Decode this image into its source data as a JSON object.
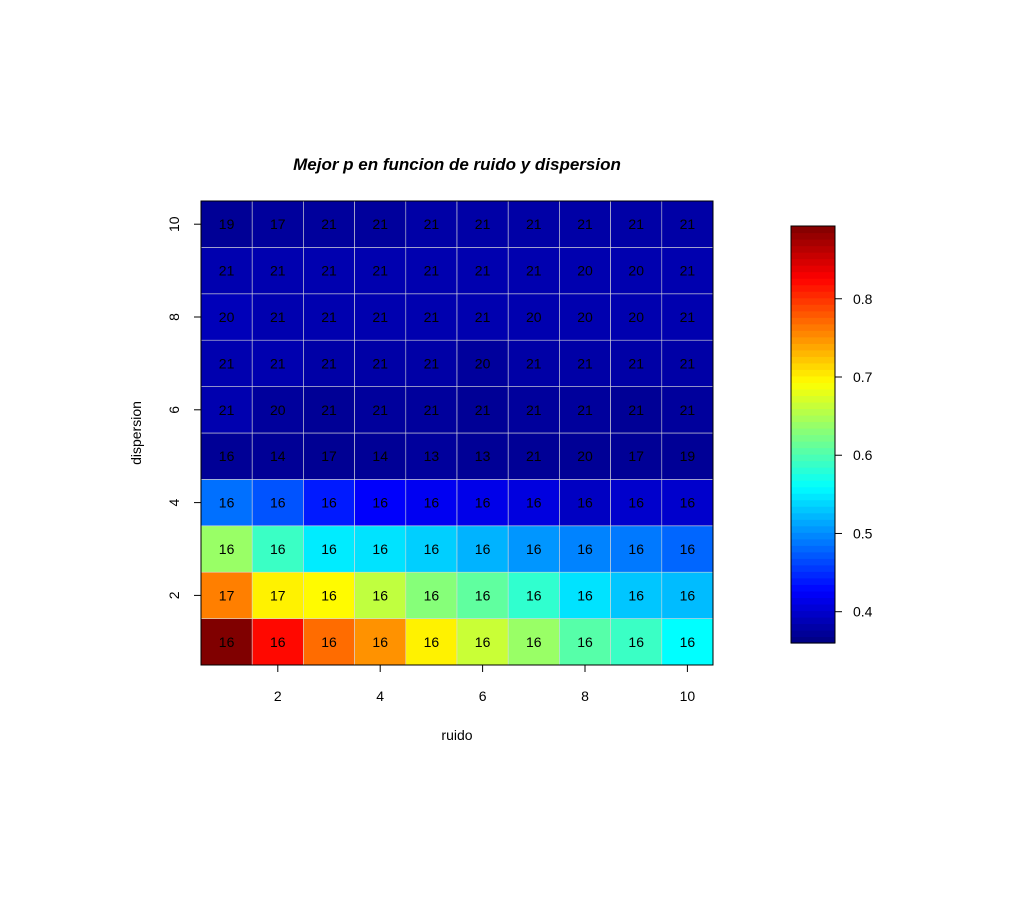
{
  "chart_data": {
    "type": "heatmap",
    "title": "Mejor p en funcion de ruido y dispersion",
    "xlabel": "ruido",
    "ylabel": "dispersion",
    "x": [
      1,
      2,
      3,
      4,
      5,
      6,
      7,
      8,
      9,
      10
    ],
    "y": [
      1,
      2,
      3,
      4,
      5,
      6,
      7,
      8,
      9,
      10
    ],
    "x_ticks": [
      2,
      4,
      6,
      8,
      10
    ],
    "y_ticks": [
      2,
      4,
      6,
      8,
      10
    ],
    "xlim": [
      0.5,
      10.5
    ],
    "ylim": [
      0.5,
      10.5
    ],
    "colormap": "jet",
    "colorbar": {
      "range": [
        0.36,
        0.893
      ],
      "ticks": [
        0.4,
        0.5,
        0.6,
        0.7,
        0.8
      ],
      "tick_labels": [
        "0.4",
        "0.5",
        "0.6",
        "0.7",
        "0.8"
      ]
    },
    "values": [
      [
        0.893,
        0.822,
        0.77,
        0.75,
        0.7,
        0.665,
        0.64,
        0.605,
        0.59,
        0.56
      ],
      [
        0.76,
        0.7,
        0.695,
        0.66,
        0.63,
        0.61,
        0.585,
        0.545,
        0.53,
        0.525
      ],
      [
        0.64,
        0.59,
        0.55,
        0.545,
        0.535,
        0.52,
        0.505,
        0.495,
        0.49,
        0.48
      ],
      [
        0.485,
        0.47,
        0.44,
        0.425,
        0.42,
        0.415,
        0.41,
        0.395,
        0.4,
        0.4
      ],
      [
        0.372,
        0.372,
        0.37,
        0.372,
        0.375,
        0.372,
        0.372,
        0.372,
        0.372,
        0.372
      ],
      [
        0.385,
        0.375,
        0.372,
        0.375,
        0.375,
        0.372,
        0.375,
        0.375,
        0.372,
        0.375
      ],
      [
        0.385,
        0.385,
        0.38,
        0.38,
        0.38,
        0.375,
        0.38,
        0.38,
        0.38,
        0.38
      ],
      [
        0.39,
        0.385,
        0.385,
        0.385,
        0.385,
        0.385,
        0.385,
        0.385,
        0.385,
        0.385
      ],
      [
        0.385,
        0.385,
        0.385,
        0.385,
        0.385,
        0.385,
        0.385,
        0.385,
        0.385,
        0.385
      ],
      [
        0.372,
        0.375,
        0.375,
        0.375,
        0.38,
        0.38,
        0.38,
        0.38,
        0.38,
        0.38
      ]
    ],
    "labels": [
      [
        "16",
        "16",
        "16",
        "16",
        "16",
        "16",
        "16",
        "16",
        "16",
        "16"
      ],
      [
        "17",
        "17",
        "16",
        "16",
        "16",
        "16",
        "16",
        "16",
        "16",
        "16"
      ],
      [
        "16",
        "16",
        "16",
        "16",
        "16",
        "16",
        "16",
        "16",
        "16",
        "16"
      ],
      [
        "16",
        "16",
        "16",
        "16",
        "16",
        "16",
        "16",
        "16",
        "16",
        "16"
      ],
      [
        "16",
        "14",
        "17",
        "14",
        "13",
        "13",
        "21",
        "20",
        "17",
        "19"
      ],
      [
        "21",
        "20",
        "21",
        "21",
        "21",
        "21",
        "21",
        "21",
        "21",
        "21"
      ],
      [
        "21",
        "21",
        "21",
        "21",
        "21",
        "20",
        "21",
        "21",
        "21",
        "21"
      ],
      [
        "20",
        "21",
        "21",
        "21",
        "21",
        "21",
        "20",
        "20",
        "20",
        "21"
      ],
      [
        "21",
        "21",
        "21",
        "21",
        "21",
        "21",
        "21",
        "20",
        "20",
        "21"
      ],
      [
        "19",
        "17",
        "21",
        "21",
        "21",
        "21",
        "21",
        "21",
        "21",
        "21"
      ]
    ]
  }
}
